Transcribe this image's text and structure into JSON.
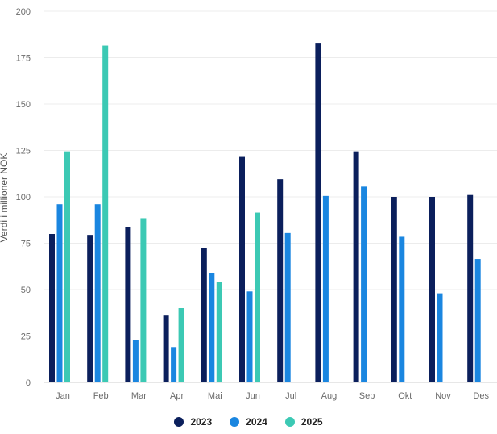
{
  "chart_data": {
    "type": "bar",
    "ylabel": "Verdi i millioner NOK",
    "ylim": [
      0,
      200
    ],
    "yticks": [
      0,
      25,
      50,
      75,
      100,
      125,
      150,
      175,
      200
    ],
    "grid": true,
    "legend_position": "bottom-center",
    "categories": [
      "Jan",
      "Feb",
      "Mar",
      "Apr",
      "Mai",
      "Jun",
      "Jul",
      "Aug",
      "Sep",
      "Okt",
      "Nov",
      "Des"
    ],
    "series": [
      {
        "name": "2023",
        "color": "#0b1f5c",
        "values": [
          80,
          79.5,
          83.5,
          36,
          72.5,
          121.5,
          109.5,
          183,
          124.5,
          100,
          100,
          101
        ]
      },
      {
        "name": "2024",
        "color": "#1a86e0",
        "values": [
          96,
          96,
          23,
          19,
          59,
          49,
          80.5,
          100.5,
          105.5,
          78.5,
          48,
          66.5
        ]
      },
      {
        "name": "2025",
        "color": "#3cc9b4",
        "values": [
          124.5,
          181.5,
          88.5,
          40,
          54,
          91.5,
          null,
          null,
          null,
          null,
          null,
          null
        ]
      }
    ]
  }
}
